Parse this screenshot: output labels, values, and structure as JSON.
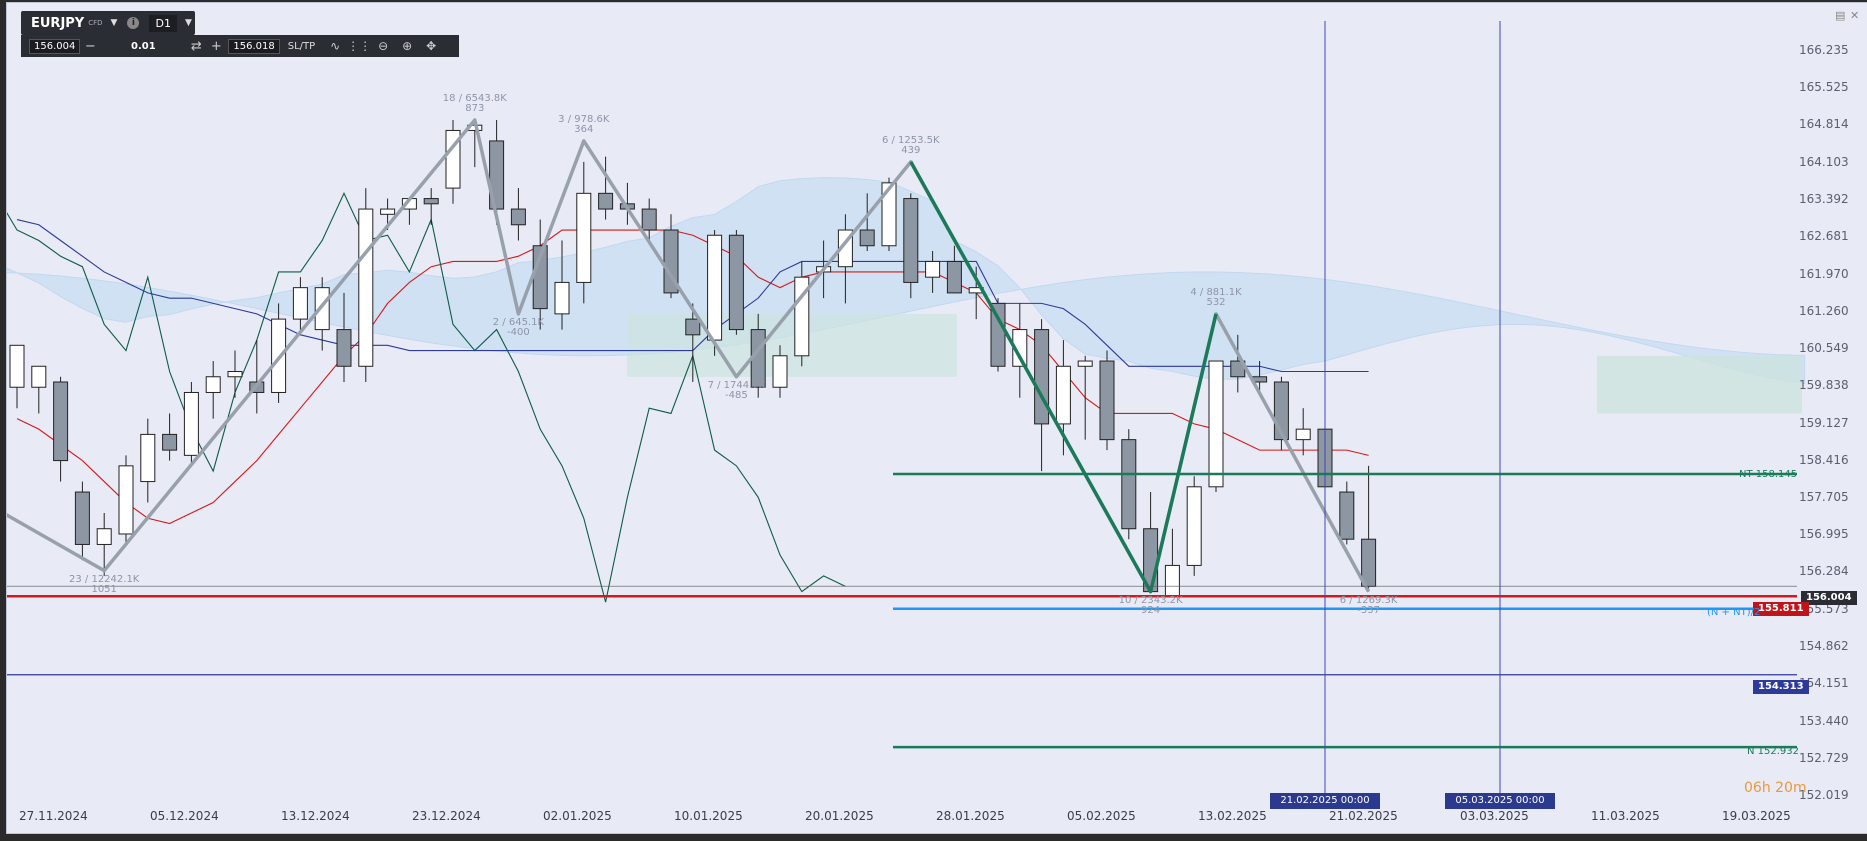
{
  "toolbar": {
    "symbol": "EURJPY",
    "instrument_type": "CFD",
    "timeframe": "D1",
    "bid_price": "156.004",
    "lot_size": "0.01",
    "ask_price": "156.018",
    "sltp_label": "SL/TP",
    "minus_label": "−",
    "plus_label": "+",
    "info_label": "i"
  },
  "price_axis": {
    "ticks": [
      "166.235",
      "165.525",
      "164.814",
      "164.103",
      "163.392",
      "162.681",
      "161.970",
      "161.260",
      "160.549",
      "159.838",
      "159.127",
      "158.416",
      "157.705",
      "156.995",
      "156.284",
      "155.573",
      "154.862",
      "154.151",
      "153.440",
      "152.729",
      "152.019"
    ]
  },
  "time_axis": {
    "labels": [
      "27.11.2024",
      "05.12.2024",
      "13.12.2024",
      "23.12.2024",
      "02.01.2025",
      "10.01.2025",
      "20.01.2025",
      "28.01.2025",
      "05.02.2025",
      "13.02.2025",
      "21.02.2025",
      "03.03.2025",
      "11.03.2025",
      "19.03.2025"
    ]
  },
  "current_price": "156.004",
  "levels": {
    "red_line": {
      "value": 155.811,
      "label": "155.811",
      "color": "#d21a1a"
    },
    "blue_line": {
      "value": 155.573,
      "text": "(N + NT)/2",
      "color": "#2196f3"
    },
    "navy_line": {
      "value": 154.313,
      "label": "154.313",
      "color": "#2e3a9a"
    },
    "nt_line": {
      "value": 158.145,
      "text": "NT 158.145",
      "color": "#1b7a5a"
    },
    "n_line": {
      "value": 152.932,
      "text": "N 152.932",
      "color": "#1b7a5a"
    }
  },
  "vertical_markers": [
    {
      "label": "21.02.2025 00:00"
    },
    {
      "label": "05.03.2025 00:00"
    }
  ],
  "zigzag_labels": [
    {
      "top": "23 / 12242.1K",
      "bottom": "1051"
    },
    {
      "top": "18 / 6543.8K",
      "bottom": "873"
    },
    {
      "top": "2 / 645.1K",
      "bottom": "-400"
    },
    {
      "top": "3 / 978.6K",
      "bottom": "364"
    },
    {
      "top": "7 / 1744.7K",
      "bottom": "-485"
    },
    {
      "top": "6 / 1253.5K",
      "bottom": "439"
    },
    {
      "top": "10 / 2343.2K",
      "bottom": "924"
    },
    {
      "top": "4 / 881.1K",
      "bottom": "532"
    },
    {
      "top": "6 / 1269.3K",
      "bottom": "-337"
    }
  ],
  "timer": "06h 20m",
  "chart_data": {
    "type": "candlestick",
    "symbol": "EURJPY",
    "timeframe": "D1",
    "ylim": [
      152.019,
      166.235
    ],
    "candles": [
      {
        "o": 159.8,
        "h": 160.5,
        "l": 159.4,
        "c": 160.6
      },
      {
        "o": 159.8,
        "h": 160.2,
        "l": 159.3,
        "c": 160.2
      },
      {
        "o": 159.9,
        "h": 160.0,
        "l": 158.0,
        "c": 158.4
      },
      {
        "o": 157.8,
        "h": 158.0,
        "l": 156.5,
        "c": 156.8
      },
      {
        "o": 156.8,
        "h": 157.4,
        "l": 156.2,
        "c": 157.1
      },
      {
        "o": 157.0,
        "h": 158.5,
        "l": 156.8,
        "c": 158.3
      },
      {
        "o": 158.0,
        "h": 159.2,
        "l": 157.6,
        "c": 158.9
      },
      {
        "o": 158.9,
        "h": 159.3,
        "l": 158.4,
        "c": 158.6
      },
      {
        "o": 158.5,
        "h": 159.9,
        "l": 158.3,
        "c": 159.7
      },
      {
        "o": 159.7,
        "h": 160.3,
        "l": 159.2,
        "c": 160.0
      },
      {
        "o": 160.0,
        "h": 160.5,
        "l": 159.6,
        "c": 160.1
      },
      {
        "o": 159.9,
        "h": 160.7,
        "l": 159.3,
        "c": 159.7
      },
      {
        "o": 159.7,
        "h": 161.4,
        "l": 159.5,
        "c": 161.1
      },
      {
        "o": 161.1,
        "h": 161.9,
        "l": 160.8,
        "c": 161.7
      },
      {
        "o": 160.9,
        "h": 161.9,
        "l": 160.5,
        "c": 161.7
      },
      {
        "o": 160.9,
        "h": 161.6,
        "l": 159.9,
        "c": 160.2
      },
      {
        "o": 160.2,
        "h": 163.6,
        "l": 159.9,
        "c": 163.2
      },
      {
        "o": 163.1,
        "h": 163.4,
        "l": 162.8,
        "c": 163.2
      },
      {
        "o": 163.2,
        "h": 163.4,
        "l": 162.9,
        "c": 163.4
      },
      {
        "o": 163.4,
        "h": 163.6,
        "l": 162.9,
        "c": 163.3
      },
      {
        "o": 163.6,
        "h": 164.9,
        "l": 163.3,
        "c": 164.7
      },
      {
        "o": 164.7,
        "h": 164.9,
        "l": 164.0,
        "c": 164.8
      },
      {
        "o": 164.5,
        "h": 164.9,
        "l": 162.9,
        "c": 163.2
      },
      {
        "o": 163.2,
        "h": 163.6,
        "l": 162.6,
        "c": 162.9
      },
      {
        "o": 162.5,
        "h": 163.0,
        "l": 160.9,
        "c": 161.3
      },
      {
        "o": 161.2,
        "h": 162.6,
        "l": 160.9,
        "c": 161.8
      },
      {
        "o": 161.8,
        "h": 164.1,
        "l": 161.4,
        "c": 163.5
      },
      {
        "o": 163.5,
        "h": 164.2,
        "l": 163.0,
        "c": 163.2
      },
      {
        "o": 163.3,
        "h": 163.7,
        "l": 162.9,
        "c": 163.2
      },
      {
        "o": 163.2,
        "h": 163.4,
        "l": 162.6,
        "c": 162.8
      },
      {
        "o": 162.8,
        "h": 163.1,
        "l": 161.5,
        "c": 161.6
      },
      {
        "o": 161.1,
        "h": 161.4,
        "l": 159.9,
        "c": 160.8
      },
      {
        "o": 160.7,
        "h": 162.8,
        "l": 160.4,
        "c": 162.7
      },
      {
        "o": 162.7,
        "h": 162.8,
        "l": 160.8,
        "c": 160.9
      },
      {
        "o": 160.9,
        "h": 161.2,
        "l": 159.6,
        "c": 159.8
      },
      {
        "o": 159.8,
        "h": 160.6,
        "l": 159.6,
        "c": 160.4
      },
      {
        "o": 160.4,
        "h": 162.2,
        "l": 160.2,
        "c": 161.9
      },
      {
        "o": 162.0,
        "h": 162.6,
        "l": 161.5,
        "c": 162.1
      },
      {
        "o": 162.1,
        "h": 163.1,
        "l": 161.4,
        "c": 162.8
      },
      {
        "o": 162.8,
        "h": 163.5,
        "l": 162.4,
        "c": 162.5
      },
      {
        "o": 162.5,
        "h": 163.8,
        "l": 162.4,
        "c": 163.7
      },
      {
        "o": 163.4,
        "h": 163.5,
        "l": 161.5,
        "c": 161.8
      },
      {
        "o": 161.9,
        "h": 162.4,
        "l": 161.6,
        "c": 162.2
      },
      {
        "o": 162.2,
        "h": 162.5,
        "l": 161.6,
        "c": 161.6
      },
      {
        "o": 161.6,
        "h": 162.1,
        "l": 161.1,
        "c": 161.7
      },
      {
        "o": 161.4,
        "h": 161.5,
        "l": 160.1,
        "c": 160.2
      },
      {
        "o": 160.2,
        "h": 161.4,
        "l": 159.6,
        "c": 160.9
      },
      {
        "o": 160.9,
        "h": 161.1,
        "l": 158.2,
        "c": 159.1
      },
      {
        "o": 159.1,
        "h": 160.7,
        "l": 158.5,
        "c": 160.2
      },
      {
        "o": 160.2,
        "h": 160.4,
        "l": 158.8,
        "c": 160.3
      },
      {
        "o": 160.3,
        "h": 160.5,
        "l": 158.6,
        "c": 158.8
      },
      {
        "o": 158.8,
        "h": 159.0,
        "l": 156.9,
        "c": 157.1
      },
      {
        "o": 157.1,
        "h": 157.8,
        "l": 155.9,
        "c": 155.9
      },
      {
        "o": 155.8,
        "h": 157.1,
        "l": 155.8,
        "c": 156.4
      },
      {
        "o": 156.4,
        "h": 158.1,
        "l": 156.2,
        "c": 157.9
      },
      {
        "o": 157.9,
        "h": 160.2,
        "l": 157.8,
        "c": 160.3
      },
      {
        "o": 160.3,
        "h": 160.8,
        "l": 159.7,
        "c": 160.0
      },
      {
        "o": 160.0,
        "h": 160.3,
        "l": 159.7,
        "c": 159.9
      },
      {
        "o": 159.9,
        "h": 160.0,
        "l": 158.6,
        "c": 158.8
      },
      {
        "o": 158.8,
        "h": 159.4,
        "l": 158.5,
        "c": 159.0
      },
      {
        "o": 159.0,
        "h": 159.3,
        "l": 157.9,
        "c": 157.9
      },
      {
        "o": 157.8,
        "h": 158.0,
        "l": 156.8,
        "c": 156.9
      },
      {
        "o": 156.9,
        "h": 158.3,
        "l": 155.9,
        "c": 156.0
      }
    ],
    "zigzag_grey": [
      {
        "i": -4,
        "p": 158.2
      },
      {
        "i": 4,
        "p": 156.3
      },
      {
        "i": 21,
        "p": 164.9
      },
      {
        "i": 23,
        "p": 161.2
      },
      {
        "i": 26,
        "p": 164.5
      },
      {
        "i": 33,
        "p": 160.0
      },
      {
        "i": 41,
        "p": 164.1
      },
      {
        "i": 52,
        "p": 155.9
      },
      {
        "i": 55,
        "p": 161.2
      },
      {
        "i": 62,
        "p": 155.9
      }
    ],
    "zigzag_green": [
      {
        "i": 41,
        "p": 164.1
      },
      {
        "i": 52,
        "p": 155.9
      },
      {
        "i": 55,
        "p": 161.2
      }
    ],
    "tenkan": [
      159.2,
      159.0,
      158.7,
      158.4,
      158.0,
      157.6,
      157.3,
      157.2,
      157.4,
      157.6,
      158.0,
      158.4,
      158.9,
      159.4,
      159.9,
      160.4,
      160.8,
      161.4,
      161.8,
      162.1,
      162.2,
      162.2,
      162.2,
      162.3,
      162.5,
      162.8,
      162.8,
      162.8,
      162.8,
      162.8,
      162.8,
      162.7,
      162.5,
      162.3,
      161.9,
      161.7,
      161.9,
      162.0,
      162.0,
      162.0,
      162.0,
      162.0,
      162.0,
      161.8,
      161.6,
      161.1,
      160.9,
      160.6,
      160.1,
      159.6,
      159.3,
      159.3,
      159.3,
      159.3,
      159.1,
      159.0,
      158.8,
      158.6,
      158.6,
      158.6,
      158.6,
      158.6,
      158.5
    ],
    "kijun": [
      163.0,
      162.9,
      162.6,
      162.3,
      162.0,
      161.8,
      161.6,
      161.5,
      161.5,
      161.4,
      161.3,
      161.2,
      161.0,
      160.8,
      160.7,
      160.6,
      160.6,
      160.6,
      160.5,
      160.5,
      160.5,
      160.5,
      160.5,
      160.5,
      160.5,
      160.5,
      160.5,
      160.5,
      160.5,
      160.5,
      160.5,
      160.5,
      160.9,
      161.2,
      161.5,
      162.0,
      162.2,
      162.2,
      162.2,
      162.2,
      162.2,
      162.2,
      162.2,
      162.2,
      162.2,
      161.4,
      161.4,
      161.4,
      161.3,
      161.0,
      160.6,
      160.2,
      160.2,
      160.2,
      160.2,
      160.2,
      160.2,
      160.2,
      160.1,
      160.1,
      160.1,
      160.1,
      160.1
    ],
    "chikou": [
      163.5,
      162.8,
      162.6,
      162.3,
      162.1,
      161.0,
      160.5,
      161.9,
      160.1,
      159.0,
      158.2,
      159.7,
      160.7,
      162.0,
      162.0,
      162.6,
      163.5,
      162.6,
      162.7,
      162.0,
      163.0,
      161.0,
      160.5,
      160.9,
      160.1,
      159.0,
      158.3,
      157.3,
      155.7,
      157.7,
      159.4,
      159.3,
      160.4,
      158.6,
      158.3,
      157.7,
      156.6,
      155.9,
      156.2,
      156.0
    ]
  }
}
